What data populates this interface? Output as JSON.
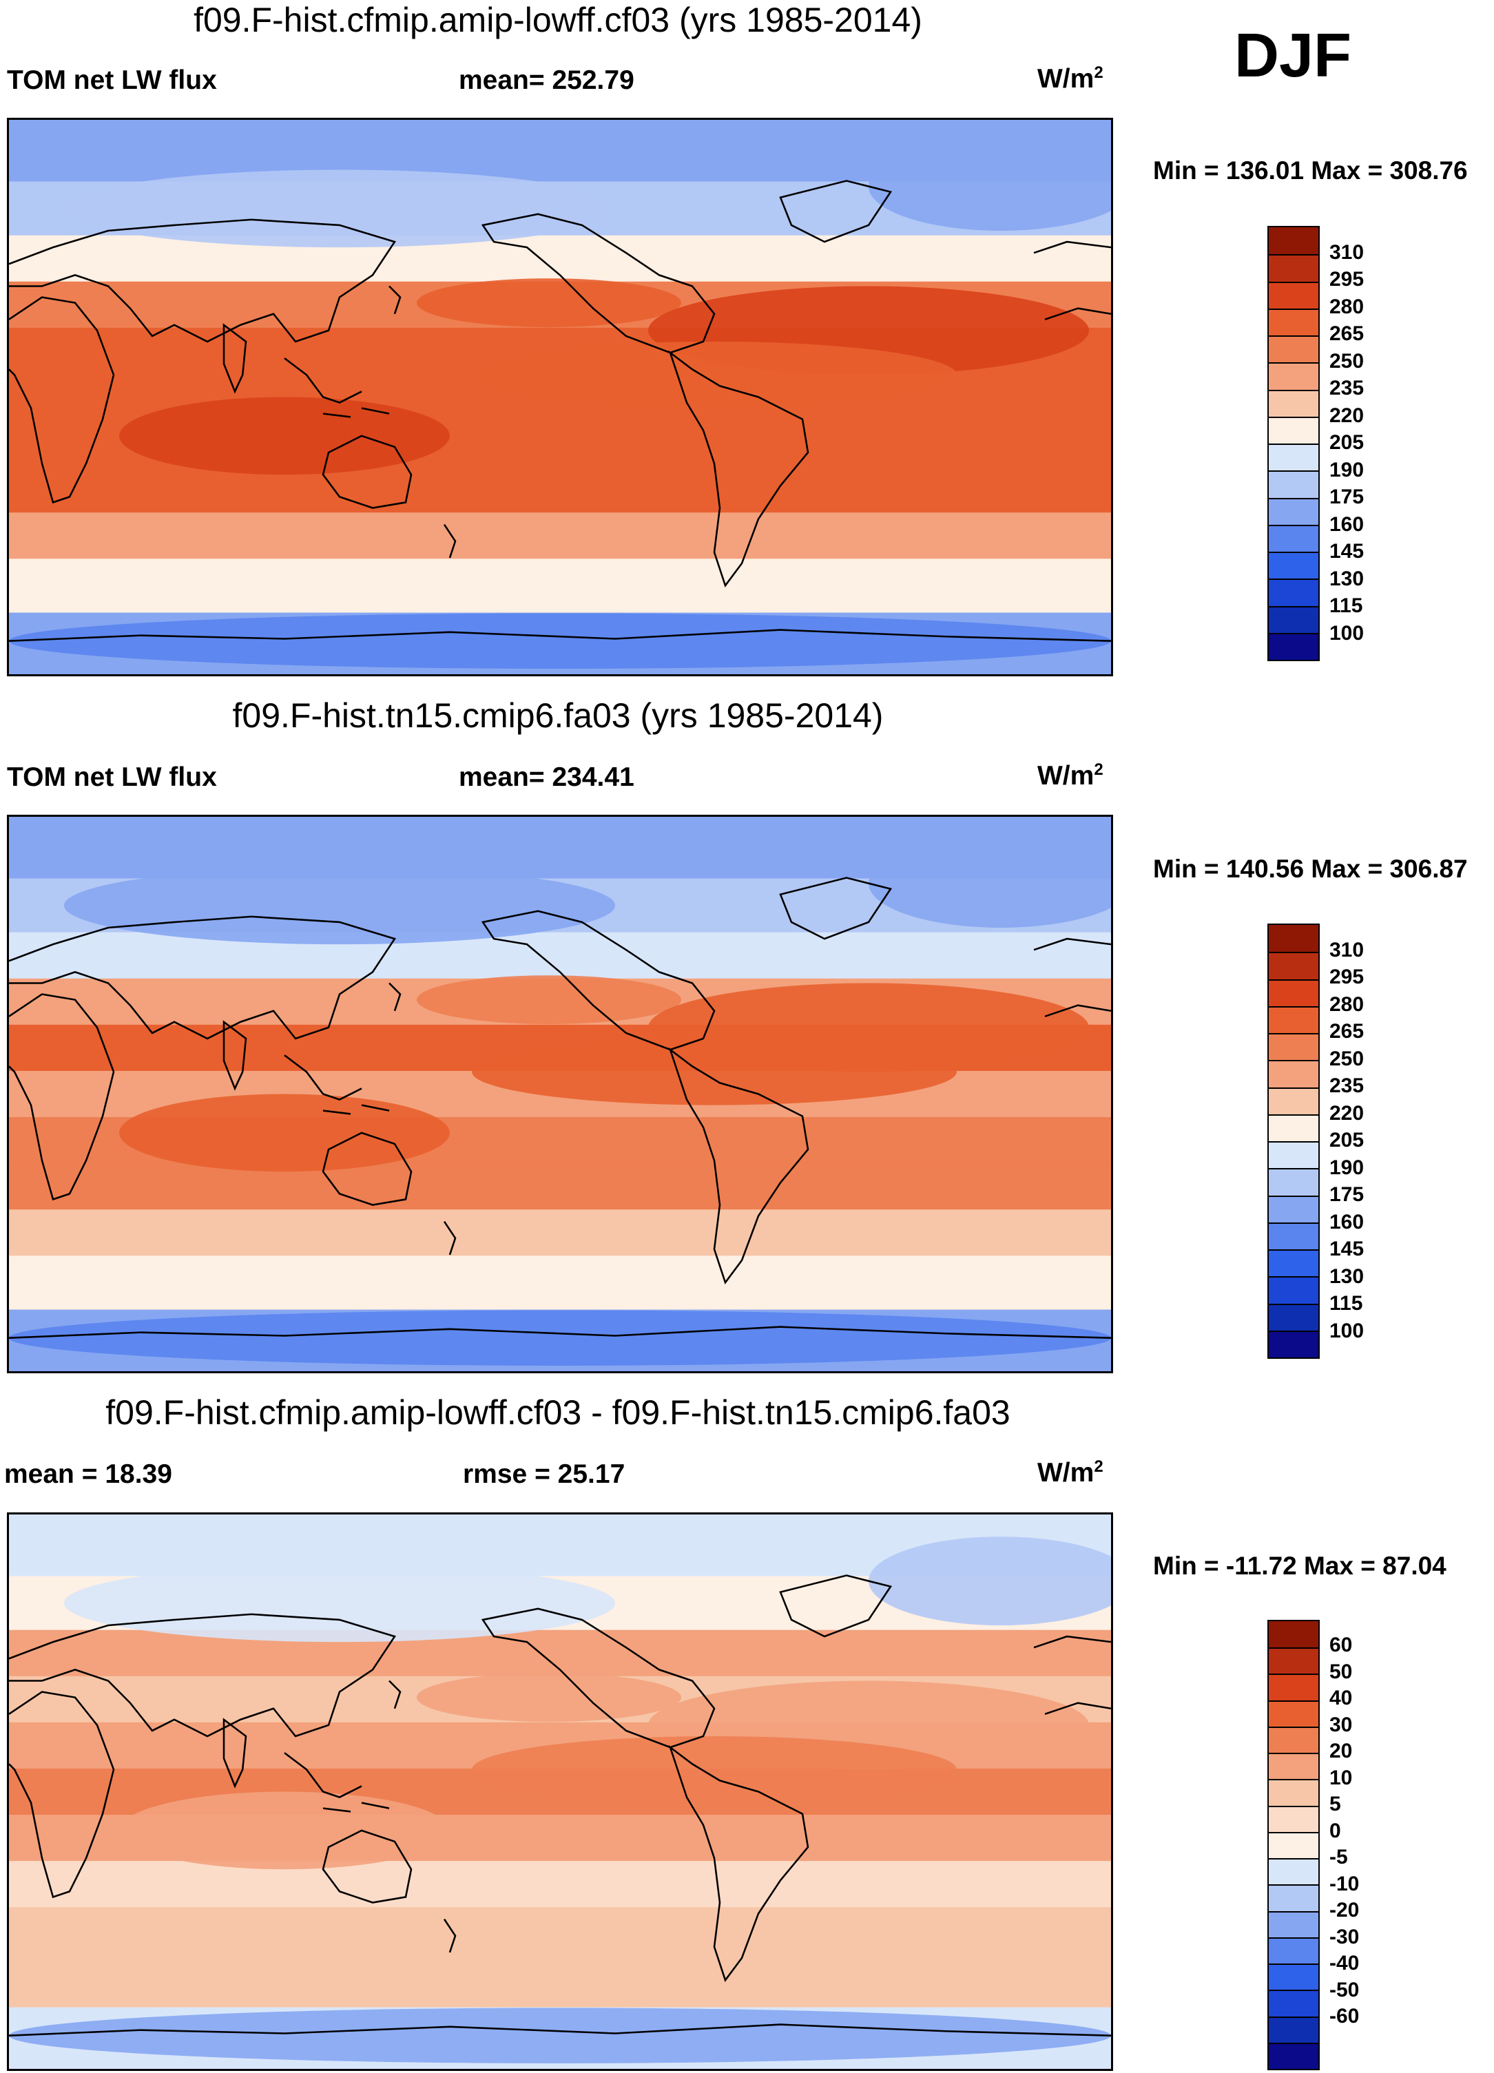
{
  "season": "DJF",
  "colors": {
    "cont_15": [
      "#0a0a8a",
      "#0d2fb0",
      "#1b46d6",
      "#2f62ea",
      "#5a84ee",
      "#86a6f2",
      "#b2c8f5",
      "#d8e6fa",
      "#fdf0e4",
      "#f7c6a8",
      "#f3a27d",
      "#ee7f52",
      "#e8602f",
      "#d9421b",
      "#b82e10",
      "#8f1805"
    ],
    "diff_16": [
      "#0a0a8a",
      "#0d2fb0",
      "#1b46d6",
      "#2f62ea",
      "#5a84ee",
      "#86a6f2",
      "#b2c8f5",
      "#d8e6fa",
      "#fdf0e4",
      "#fbdcc8",
      "#f7c6a8",
      "#f3a27d",
      "#ee7f52",
      "#e8602f",
      "#d9421b",
      "#b82e10",
      "#8f1805"
    ],
    "coast": "#000000"
  },
  "panels": [
    {
      "title": "f09.F-hist.cfmip.amip-lowff.cf03 (yrs 1985-2014)",
      "left_label": "TOM net LW flux",
      "center_label": "mean= 252.79",
      "units": "W/m",
      "units_sup": "2",
      "minmax": "Min = 136.01 Max = 308.76",
      "ticks": [
        "310",
        "295",
        "280",
        "265",
        "250",
        "235",
        "220",
        "205",
        "190",
        "175",
        "160",
        "145",
        "130",
        "115",
        "100"
      ],
      "map": {
        "type": "heatmap",
        "variable": "TOM net LW flux",
        "units": "W/m2",
        "domain_mean": 252.79,
        "min": 136.01,
        "max": 308.76,
        "levels": [
          100,
          115,
          130,
          145,
          160,
          175,
          190,
          205,
          220,
          235,
          250,
          265,
          280,
          295,
          310
        ],
        "latitude_bands": [
          {
            "lat": 80,
            "value": 170
          },
          {
            "lat": 60,
            "value": 185
          },
          {
            "lat": 45,
            "value": 215
          },
          {
            "lat": 30,
            "value": 255
          },
          {
            "lat": 15,
            "value": 275
          },
          {
            "lat": 0,
            "value": 272
          },
          {
            "lat": -15,
            "value": 278
          },
          {
            "lat": -30,
            "value": 268
          },
          {
            "lat": -45,
            "value": 240
          },
          {
            "lat": -60,
            "value": 212
          },
          {
            "lat": -80,
            "value": 165
          }
        ]
      }
    },
    {
      "title": "f09.F-hist.tn15.cmip6.fa03 (yrs 1985-2014)",
      "left_label": "TOM net LW flux",
      "center_label": "mean= 234.41",
      "units": "W/m",
      "units_sup": "2",
      "minmax": "Min = 140.56 Max = 306.87",
      "ticks": [
        "310",
        "295",
        "280",
        "265",
        "250",
        "235",
        "220",
        "205",
        "190",
        "175",
        "160",
        "145",
        "130",
        "115",
        "100"
      ],
      "map": {
        "type": "heatmap",
        "variable": "TOM net LW flux",
        "units": "W/m2",
        "domain_mean": 234.41,
        "min": 140.56,
        "max": 306.87,
        "levels": [
          100,
          115,
          130,
          145,
          160,
          175,
          190,
          205,
          220,
          235,
          250,
          265,
          280,
          295,
          310
        ],
        "latitude_bands": [
          {
            "lat": 80,
            "value": 165
          },
          {
            "lat": 60,
            "value": 180
          },
          {
            "lat": 45,
            "value": 200
          },
          {
            "lat": 30,
            "value": 240
          },
          {
            "lat": 15,
            "value": 270
          },
          {
            "lat": 0,
            "value": 240
          },
          {
            "lat": -15,
            "value": 262
          },
          {
            "lat": -30,
            "value": 250
          },
          {
            "lat": -45,
            "value": 225
          },
          {
            "lat": -60,
            "value": 205
          },
          {
            "lat": -80,
            "value": 160
          }
        ]
      }
    },
    {
      "title": "f09.F-hist.cfmip.amip-lowff.cf03 - f09.F-hist.tn15.cmip6.fa03",
      "left_label": "mean =  18.39",
      "center_label": "rmse =  25.17",
      "units": "W/m",
      "units_sup": "2",
      "minmax": "Min = -11.72 Max =  87.04",
      "ticks": [
        "60",
        "50",
        "40",
        "30",
        "20",
        "10",
        "5",
        "0",
        "-5",
        "-10",
        "-20",
        "-30",
        "-40",
        "-50",
        "-60"
      ],
      "map": {
        "type": "heatmap",
        "variable": "difference",
        "units": "W/m2",
        "domain_mean": 18.39,
        "rmse": 25.17,
        "min": -11.72,
        "max": 87.04,
        "levels": [
          -60,
          -50,
          -40,
          -30,
          -20,
          -10,
          -5,
          0,
          5,
          10,
          20,
          30,
          40,
          50,
          60
        ],
        "latitude_bands": [
          {
            "lat": 80,
            "value": -3
          },
          {
            "lat": 60,
            "value": 2
          },
          {
            "lat": 45,
            "value": 25
          },
          {
            "lat": 30,
            "value": 12
          },
          {
            "lat": 15,
            "value": 20
          },
          {
            "lat": 0,
            "value": 35
          },
          {
            "lat": -15,
            "value": 22
          },
          {
            "lat": -30,
            "value": 8
          },
          {
            "lat": -45,
            "value": 18
          },
          {
            "lat": -60,
            "value": 10
          },
          {
            "lat": -80,
            "value": -4
          }
        ]
      }
    }
  ]
}
